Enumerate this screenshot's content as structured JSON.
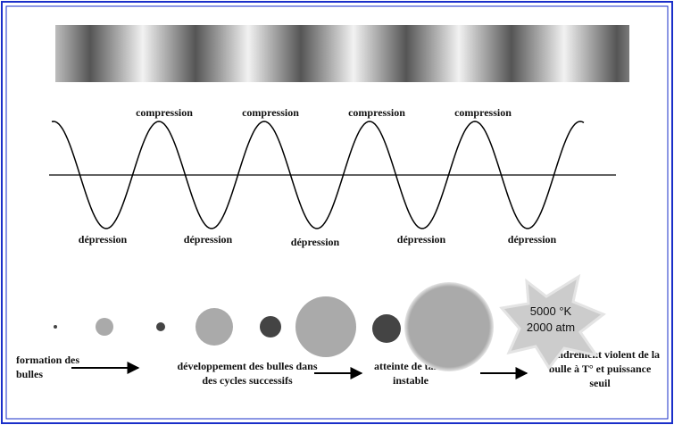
{
  "compression_labels": [
    "compression",
    "compression",
    "compression",
    "compression"
  ],
  "depression_labels": [
    "dépression",
    "dépression",
    "dépression",
    "dépression",
    "dépression"
  ],
  "star": {
    "lines": [
      "5000 °K",
      "2000 atm"
    ]
  },
  "stages": [
    {
      "lines": [
        "formation des",
        "bulles"
      ]
    },
    {
      "lines": [
        "développement des bulles dans",
        "des cycles successifs"
      ]
    },
    {
      "lines": [
        "atteinte de taille",
        "instable"
      ]
    },
    {
      "lines": [
        "effondrement violent de la",
        "bulle à T° et puissance",
        "seuil"
      ]
    }
  ]
}
